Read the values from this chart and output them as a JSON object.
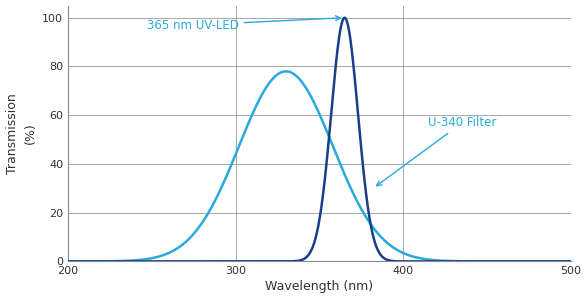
{
  "xlabel": "Wavelength (nm)",
  "ylabel_line1": "Transmission",
  "ylabel_line2": "(%)",
  "xlim": [
    200,
    500
  ],
  "ylim": [
    0,
    105
  ],
  "yticks": [
    0,
    20,
    40,
    60,
    80,
    100
  ],
  "xticks": [
    200,
    300,
    400,
    500
  ],
  "background_color": "#ffffff",
  "grid_color": "#999999",
  "uv_led_color": "#29aade",
  "u340_color": "#1a3f8a",
  "uv_led_label": "365 nm UV-LED",
  "u340_label": "U-340 Filter",
  "uv_led_peak_nm": 365,
  "uv_led_sigma": 8,
  "uv_led_scale": 100,
  "u340_peak_nm": 330,
  "u340_sigma": 28,
  "u340_scale": 78,
  "annotation_color": "#29aade"
}
